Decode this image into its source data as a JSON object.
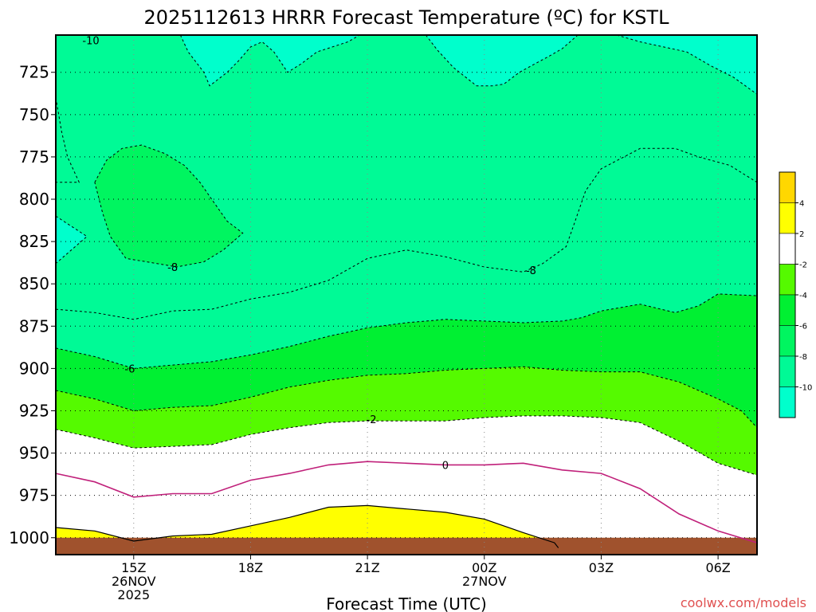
{
  "page": {
    "title": "2025112613 HRRR Forecast Temperature (ºC) for KSTL",
    "watermark": "coolwx.com/models"
  },
  "chart_data": {
    "type": "contour",
    "title": "2025112613 HRRR Forecast Temperature (ºC) for KSTL",
    "xlabel": "Forecast Time (UTC)",
    "ylabel": "",
    "x_unit": "hours since 2025-11-26 13Z",
    "xlim": [
      13,
      31
    ],
    "ylim": [
      703,
      1010
    ],
    "y_inverted": true,
    "x_ticks": [
      {
        "value": 15,
        "lines": [
          "15Z",
          "26NOV",
          "2025"
        ]
      },
      {
        "value": 18,
        "lines": [
          "18Z"
        ]
      },
      {
        "value": 21,
        "lines": [
          "21Z"
        ]
      },
      {
        "value": 24,
        "lines": [
          "00Z",
          "27NOV"
        ]
      },
      {
        "value": 27,
        "lines": [
          "03Z"
        ]
      },
      {
        "value": 30,
        "lines": [
          "06Z"
        ]
      }
    ],
    "y_ticks": [
      725,
      750,
      775,
      800,
      825,
      850,
      875,
      900,
      925,
      950,
      975,
      1000
    ],
    "grid": true,
    "surface_fill": "#a0522d",
    "bands": [
      {
        "range": "-12 to -10",
        "color": "#00ffcc"
      },
      {
        "range": "-10 to -8",
        "color": "#00fa96"
      },
      {
        "range": "-8 to -6",
        "color": "#00f560"
      },
      {
        "range": "-6 to -4",
        "color": "#00f032"
      },
      {
        "range": "-4 to -2",
        "color": "#55fa00"
      },
      {
        "range": "-2 to 2",
        "color": "#ffffff"
      },
      {
        "range": "2 to 4",
        "color": "#ffff00"
      },
      {
        "range": "4 to 6",
        "color": "#ffd700"
      }
    ],
    "colorbar": {
      "labels": [
        "4",
        "2",
        "-2",
        "-4",
        "-6",
        "-8",
        "-10"
      ],
      "colors": [
        "#ffd700",
        "#ffff00",
        "#ffffff",
        "#55fa00",
        "#00f032",
        "#00f560",
        "#00fa96",
        "#00ffcc"
      ]
    },
    "isotherms": [
      {
        "level": -10,
        "style": "dashed",
        "label": "-10",
        "label_at": [
          13.9,
          706
        ],
        "segments": [
          [
            [
              16.2,
              703
            ],
            [
              16.4,
              713
            ],
            [
              16.8,
              725
            ],
            [
              16.95,
              733
            ],
            [
              17.4,
              725
            ],
            [
              17.7,
              718
            ],
            [
              18.0,
              710
            ],
            [
              18.3,
              707
            ],
            [
              18.6,
              713
            ],
            [
              18.95,
              725
            ],
            [
              19.3,
              720
            ],
            [
              19.7,
              713
            ],
            [
              20.1,
              710
            ],
            [
              20.5,
              707
            ],
            [
              20.8,
              703
            ]
          ],
          [
            [
              22.5,
              703
            ],
            [
              22.8,
              712
            ],
            [
              23.2,
              722
            ],
            [
              23.8,
              733
            ],
            [
              24.2,
              733
            ],
            [
              24.5,
              732
            ],
            [
              24.9,
              725
            ],
            [
              25.3,
              720
            ],
            [
              25.7,
              715
            ],
            [
              26.0,
              711
            ],
            [
              26.4,
              703
            ]
          ],
          [
            [
              27.4,
              703
            ],
            [
              28.0,
              707
            ],
            [
              28.6,
              710
            ],
            [
              29.2,
              713
            ],
            [
              29.8,
              721
            ],
            [
              30.4,
              728
            ],
            [
              31.0,
              738
            ]
          ]
        ]
      },
      {
        "level": -10,
        "style": "dashed",
        "segments": [
          [
            [
              13.0,
              740
            ],
            [
              13.15,
              760
            ],
            [
              13.3,
              775
            ],
            [
              13.6,
              790
            ],
            [
              13.0,
              790
            ]
          ],
          [
            [
              13.0,
              810
            ],
            [
              13.8,
              822
            ],
            [
              13.0,
              838
            ]
          ]
        ]
      },
      {
        "level": -8,
        "style": "dashed",
        "label": "-8",
        "label_at": [
          16.0,
          840
        ],
        "segments": [
          [
            [
              14.0,
              790
            ],
            [
              14.3,
              777
            ],
            [
              14.7,
              770
            ],
            [
              15.2,
              768
            ],
            [
              15.8,
              773
            ],
            [
              16.3,
              780
            ],
            [
              16.7,
              790
            ],
            [
              17.0,
              800
            ],
            [
              17.4,
              813
            ],
            [
              17.8,
              820
            ],
            [
              17.3,
              830
            ],
            [
              16.8,
              837
            ],
            [
              16.1,
              840
            ],
            [
              15.6,
              838
            ],
            [
              14.8,
              835
            ],
            [
              14.4,
              822
            ],
            [
              14.2,
              808
            ],
            [
              14.0,
              790
            ]
          ]
        ]
      },
      {
        "level": -8,
        "style": "dashed",
        "label": "-8",
        "label_at": [
          25.2,
          842
        ],
        "segments": [
          [
            [
              13.0,
              865
            ],
            [
              14.0,
              867
            ],
            [
              15.0,
              871
            ],
            [
              16.0,
              866
            ],
            [
              17.0,
              865
            ],
            [
              18.0,
              859
            ],
            [
              19.0,
              855
            ],
            [
              20.0,
              848
            ],
            [
              21.0,
              835
            ],
            [
              22.0,
              830
            ],
            [
              23.0,
              834
            ],
            [
              24.0,
              840
            ],
            [
              25.0,
              843
            ],
            [
              25.5,
              838
            ],
            [
              26.1,
              828
            ],
            [
              26.3,
              815
            ],
            [
              26.6,
              795
            ],
            [
              27.0,
              782
            ],
            [
              28.0,
              770
            ],
            [
              28.9,
              770
            ],
            [
              29.5,
              775
            ],
            [
              30.3,
              780
            ],
            [
              31.0,
              790
            ]
          ]
        ]
      },
      {
        "level": -6,
        "style": "dashed",
        "label": "-6",
        "label_at": [
          14.9,
          900
        ],
        "segments": [
          [
            [
              13.0,
              888
            ],
            [
              14.0,
              893
            ],
            [
              15.0,
              900
            ],
            [
              16.0,
              898
            ],
            [
              17.0,
              896
            ],
            [
              18.0,
              892
            ],
            [
              19.0,
              887
            ],
            [
              20.0,
              881
            ],
            [
              21.0,
              876
            ],
            [
              22.0,
              873
            ],
            [
              23.0,
              871
            ],
            [
              24.0,
              872
            ],
            [
              25.0,
              873
            ],
            [
              26.0,
              872
            ],
            [
              26.5,
              870
            ],
            [
              27.0,
              866
            ],
            [
              28.0,
              862
            ],
            [
              28.9,
              867
            ],
            [
              29.5,
              863
            ],
            [
              30.0,
              856
            ],
            [
              31.0,
              857
            ]
          ]
        ]
      },
      {
        "level": -4,
        "style": "dashed",
        "segments": [
          [
            [
              13.0,
              913
            ],
            [
              14.0,
              918
            ],
            [
              15.0,
              925
            ],
            [
              16.0,
              923
            ],
            [
              17.0,
              922
            ],
            [
              18.0,
              917
            ],
            [
              19.0,
              911
            ],
            [
              20.0,
              907
            ],
            [
              21.0,
              904
            ],
            [
              22.0,
              903
            ],
            [
              23.0,
              901
            ],
            [
              24.0,
              900
            ],
            [
              25.0,
              899
            ],
            [
              26.0,
              901
            ],
            [
              27.0,
              902
            ],
            [
              28.0,
              902
            ],
            [
              29.0,
              908
            ],
            [
              30.0,
              918
            ],
            [
              30.6,
              925
            ],
            [
              31.0,
              935
            ]
          ]
        ]
      },
      {
        "level": -2,
        "style": "dashed",
        "label": "-2",
        "label_at": [
          21.1,
          930
        ],
        "segments": [
          [
            [
              13.0,
              936
            ],
            [
              14.0,
              941
            ],
            [
              15.0,
              947
            ],
            [
              16.0,
              946
            ],
            [
              17.0,
              945
            ],
            [
              18.0,
              939
            ],
            [
              19.0,
              935
            ],
            [
              20.0,
              932
            ],
            [
              21.0,
              931
            ],
            [
              22.0,
              931
            ],
            [
              23.0,
              931
            ],
            [
              24.0,
              929
            ],
            [
              25.0,
              928
            ],
            [
              26.0,
              928
            ],
            [
              27.0,
              929
            ],
            [
              28.0,
              932
            ],
            [
              29.0,
              943
            ],
            [
              30.0,
              956
            ],
            [
              31.0,
              963
            ]
          ]
        ]
      },
      {
        "level": 0,
        "style": "solid_magenta",
        "label": "0",
        "label_at": [
          23.0,
          957
        ],
        "segments": [
          [
            [
              13.0,
              962
            ],
            [
              14.0,
              967
            ],
            [
              15.0,
              976
            ],
            [
              16.0,
              974
            ],
            [
              17.0,
              974
            ],
            [
              18.0,
              966
            ],
            [
              19.0,
              962
            ],
            [
              20.0,
              957
            ],
            [
              21.0,
              955
            ],
            [
              22.0,
              956
            ],
            [
              23.0,
              957
            ],
            [
              24.0,
              957
            ],
            [
              25.0,
              956
            ],
            [
              26.0,
              960
            ],
            [
              27.0,
              962
            ],
            [
              28.0,
              971
            ],
            [
              29.0,
              986
            ],
            [
              30.0,
              996
            ],
            [
              31.0,
              1003
            ]
          ]
        ]
      },
      {
        "level": 2,
        "style": "solid_black",
        "segments": [
          [
            [
              13.0,
              994
            ],
            [
              14.0,
              996
            ],
            [
              15.0,
              1002
            ],
            [
              16.0,
              999
            ],
            [
              17.0,
              998
            ],
            [
              18.0,
              993
            ],
            [
              19.0,
              988
            ],
            [
              20.0,
              982
            ],
            [
              21.0,
              981
            ],
            [
              22.0,
              983
            ],
            [
              23.0,
              985
            ],
            [
              24.0,
              989
            ],
            [
              25.0,
              997
            ],
            [
              25.8,
              1003
            ],
            [
              25.9,
              1006
            ]
          ]
        ]
      }
    ],
    "surface_pressure": [
      [
        13,
        1000
      ],
      [
        31,
        1000
      ]
    ],
    "surface_bottom": 1008
  }
}
